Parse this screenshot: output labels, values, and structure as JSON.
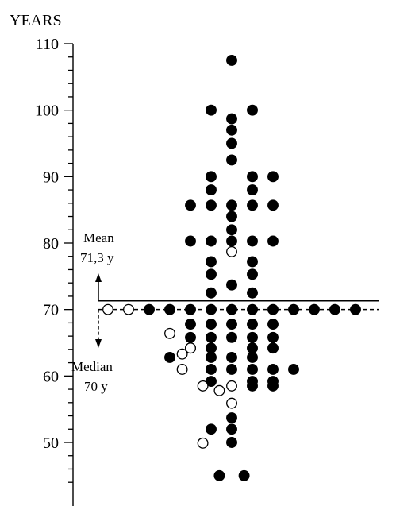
{
  "chart_data": {
    "type": "scatter",
    "title": "",
    "ylabel": "YEARS",
    "xlabel": "",
    "ylim": [
      40,
      110
    ],
    "yticks_labeled": [
      50,
      60,
      70,
      80,
      90,
      100,
      110
    ],
    "ytick_labels": [
      "50",
      "60",
      "70",
      "80",
      "90",
      "100",
      "110"
    ],
    "grid": false,
    "legend": "none",
    "colors": {
      "filled": "#000000",
      "open": "#ffffff",
      "outline": "#000000"
    },
    "reference_lines": [
      {
        "name": "mean",
        "value": 71.3,
        "style": "solid"
      },
      {
        "name": "median",
        "value": 70,
        "style": "dashed"
      }
    ],
    "annotations": {
      "mean_title": "Mean",
      "mean_value": "71,3 y",
      "median_title": "Median",
      "median_value": "70 y"
    },
    "series": [
      {
        "marker": "filled",
        "points": [
          {
            "x": 0,
            "y": 107.5
          },
          {
            "x": -0.5,
            "y": 100
          },
          {
            "x": 0.5,
            "y": 100
          },
          {
            "x": 0,
            "y": 98.7
          },
          {
            "x": 0,
            "y": 97
          },
          {
            "x": 0,
            "y": 95
          },
          {
            "x": 0,
            "y": 92.5
          },
          {
            "x": -0.5,
            "y": 90
          },
          {
            "x": 0.5,
            "y": 90
          },
          {
            "x": 1,
            "y": 90
          },
          {
            "x": -0.5,
            "y": 88
          },
          {
            "x": 0.5,
            "y": 88
          },
          {
            "x": -1,
            "y": 85.7
          },
          {
            "x": -0.5,
            "y": 85.7
          },
          {
            "x": 0,
            "y": 85.7
          },
          {
            "x": 0.5,
            "y": 85.7
          },
          {
            "x": 1,
            "y": 85.7
          },
          {
            "x": 0,
            "y": 84
          },
          {
            "x": 0,
            "y": 82
          },
          {
            "x": -1,
            "y": 80.3
          },
          {
            "x": -0.5,
            "y": 80.3
          },
          {
            "x": 0,
            "y": 80.3
          },
          {
            "x": 0.5,
            "y": 80.3
          },
          {
            "x": 1,
            "y": 80.3
          },
          {
            "x": -0.5,
            "y": 77.2
          },
          {
            "x": 0.5,
            "y": 77.2
          },
          {
            "x": -0.5,
            "y": 75.3
          },
          {
            "x": 0.5,
            "y": 75.3
          },
          {
            "x": 0,
            "y": 73.7
          },
          {
            "x": -0.5,
            "y": 72.5
          },
          {
            "x": 0.5,
            "y": 72.5
          },
          {
            "x": -2,
            "y": 70
          },
          {
            "x": -1.5,
            "y": 70
          },
          {
            "x": -1,
            "y": 70
          },
          {
            "x": -0.5,
            "y": 70
          },
          {
            "x": 0,
            "y": 70
          },
          {
            "x": 0.5,
            "y": 70
          },
          {
            "x": 1,
            "y": 70
          },
          {
            "x": 1.5,
            "y": 70
          },
          {
            "x": 2,
            "y": 70
          },
          {
            "x": 2.5,
            "y": 70
          },
          {
            "x": 3,
            "y": 70
          },
          {
            "x": -1,
            "y": 67.8
          },
          {
            "x": -0.5,
            "y": 67.8
          },
          {
            "x": 0,
            "y": 67.8
          },
          {
            "x": 0.5,
            "y": 67.8
          },
          {
            "x": 1,
            "y": 67.8
          },
          {
            "x": -1,
            "y": 65.8
          },
          {
            "x": -0.5,
            "y": 65.8
          },
          {
            "x": 0,
            "y": 65.8
          },
          {
            "x": 0.5,
            "y": 65.8
          },
          {
            "x": 1,
            "y": 65.8
          },
          {
            "x": -1,
            "y": 64.2
          },
          {
            "x": -0.5,
            "y": 64.2
          },
          {
            "x": 0.5,
            "y": 64.2
          },
          {
            "x": 1,
            "y": 64.2
          },
          {
            "x": -1.5,
            "y": 62.8
          },
          {
            "x": -0.5,
            "y": 62.8
          },
          {
            "x": 0,
            "y": 62.8
          },
          {
            "x": 0.5,
            "y": 62.8
          },
          {
            "x": 0,
            "y": 61
          },
          {
            "x": -0.5,
            "y": 61
          },
          {
            "x": 0.5,
            "y": 61
          },
          {
            "x": 1,
            "y": 61
          },
          {
            "x": 1.5,
            "y": 61
          },
          {
            "x": -0.5,
            "y": 59.2
          },
          {
            "x": 0.5,
            "y": 59.2
          },
          {
            "x": 1,
            "y": 59.2
          },
          {
            "x": 0.5,
            "y": 58.5
          },
          {
            "x": 1,
            "y": 58.5
          },
          {
            "x": 0,
            "y": 53.7
          },
          {
            "x": -0.5,
            "y": 52
          },
          {
            "x": 0,
            "y": 52
          },
          {
            "x": 0,
            "y": 50
          },
          {
            "x": -0.3,
            "y": 45
          },
          {
            "x": 0.3,
            "y": 45
          }
        ]
      },
      {
        "marker": "open",
        "points": [
          {
            "x": 0,
            "y": 78.7
          },
          {
            "x": -3,
            "y": 70
          },
          {
            "x": -2.5,
            "y": 70
          },
          {
            "x": -1.5,
            "y": 66.4
          },
          {
            "x": -1,
            "y": 64.2
          },
          {
            "x": -1.2,
            "y": 63.3
          },
          {
            "x": -1.2,
            "y": 61
          },
          {
            "x": -0.7,
            "y": 58.5
          },
          {
            "x": 0,
            "y": 58.5
          },
          {
            "x": -0.3,
            "y": 57.8
          },
          {
            "x": 0,
            "y": 55.9
          },
          {
            "x": -0.7,
            "y": 49.9
          }
        ]
      }
    ]
  }
}
